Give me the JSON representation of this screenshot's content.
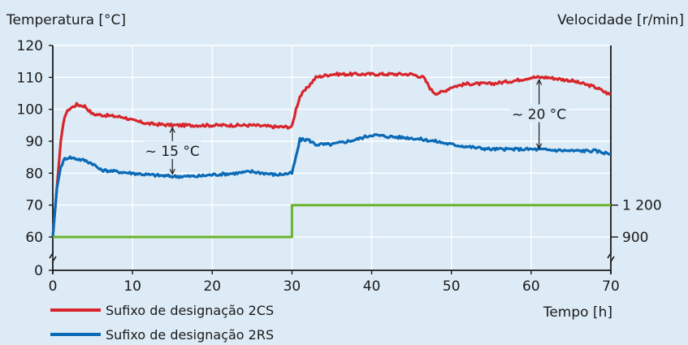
{
  "chart_data": {
    "type": "line",
    "y_left_label": "Temperatura [°C]",
    "y_right_label": "Velocidade [r/min]",
    "x_label": "Tempo [h]",
    "xlim": [
      0,
      70
    ],
    "ylim": [
      0,
      120
    ],
    "x_ticks": [
      "0",
      "10",
      "20",
      "30",
      "40",
      "50",
      "60",
      "70"
    ],
    "y_ticks": [
      "0",
      "60",
      "70",
      "80",
      "90",
      "100",
      "110",
      "120"
    ],
    "y_right_ticks": [
      "900",
      "1 200"
    ],
    "grid": true,
    "axis_break": true,
    "series": [
      {
        "name": "Sufixo de designação 2CS",
        "color": "#d7262b",
        "x": [
          0,
          0.5,
          1,
          1.5,
          2,
          3,
          4,
          5,
          7,
          9,
          10,
          12,
          15,
          20,
          25,
          28,
          30,
          30.5,
          31,
          32,
          33,
          35,
          40,
          45,
          46.5,
          47.5,
          48,
          49,
          50,
          52,
          55,
          58,
          60,
          62,
          65,
          68,
          70
        ],
        "values": [
          60,
          75,
          90,
          98,
          100,
          101.5,
          101,
          98.5,
          98,
          97.5,
          96.5,
          95.5,
          95,
          95,
          95,
          94.5,
          94.5,
          100,
          104,
          107,
          110,
          111,
          111,
          111,
          110,
          106,
          105,
          105.5,
          107,
          108,
          108,
          109,
          110,
          110,
          109,
          107,
          104.5
        ]
      },
      {
        "name": "Sufixo de designação 2RS",
        "color": "#0a6ab6",
        "x": [
          0,
          0.5,
          1,
          1.5,
          2,
          3,
          4,
          5,
          6,
          8,
          10,
          12,
          15,
          18,
          20,
          23,
          25,
          28,
          30,
          30.5,
          31,
          32,
          33,
          35,
          38,
          40,
          42,
          45,
          48,
          50,
          53,
          55,
          60,
          65,
          68,
          70
        ],
        "values": [
          60,
          75,
          82,
          84.5,
          85,
          84.5,
          84,
          83,
          81,
          80.5,
          80,
          79.5,
          79,
          79,
          79.5,
          80,
          80.5,
          79.5,
          80,
          85,
          90.5,
          90.5,
          89,
          89,
          90.5,
          92,
          91.5,
          91,
          90,
          89,
          88,
          87.5,
          87.5,
          87,
          87,
          86
        ]
      },
      {
        "name": "Velocidade",
        "color": "#6cb42c",
        "x": [
          0,
          30,
          30,
          70
        ],
        "values": [
          60,
          60,
          70,
          70
        ],
        "right_axis_levels": [
          "900",
          "1 200"
        ]
      }
    ],
    "annotations": [
      {
        "text": "~ 15 °C",
        "x": 15,
        "y_from": 79,
        "y_to": 95
      },
      {
        "text": "~ 20 °C",
        "x": 61,
        "y_from": 87,
        "y_to": 110
      }
    ],
    "legend_position": "bottom-left"
  }
}
